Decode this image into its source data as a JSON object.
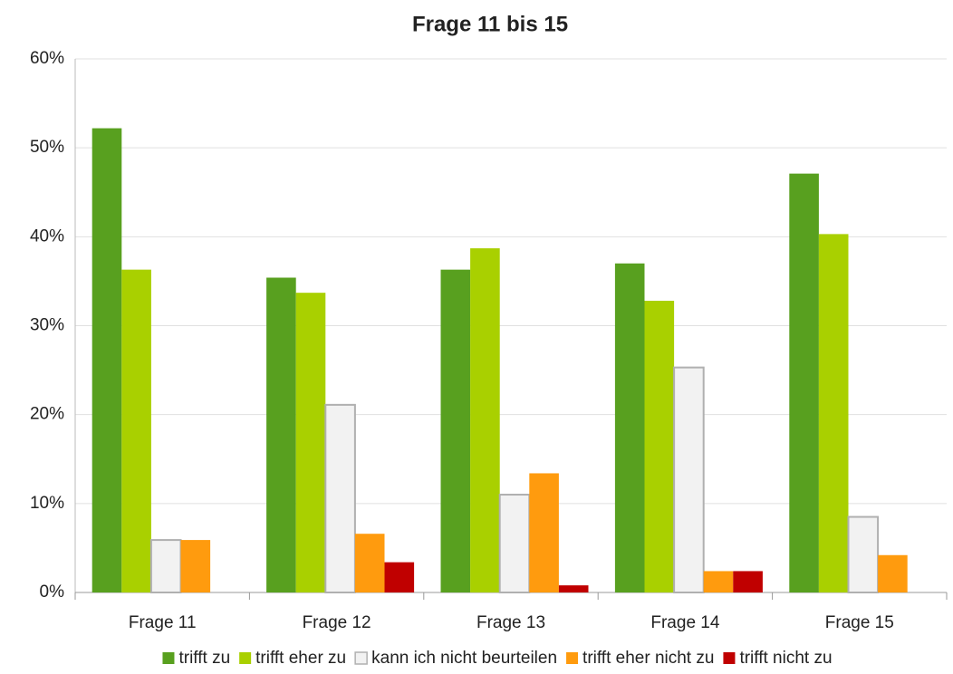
{
  "chart_data": {
    "type": "bar",
    "title": "Frage 11 bis 15",
    "categories": [
      "Frage 11",
      "Frage 12",
      "Frage 13",
      "Frage 14",
      "Frage 15"
    ],
    "series": [
      {
        "name": "trifft zu",
        "color": "#58a01f",
        "values": [
          52.2,
          35.4,
          36.3,
          37.0,
          47.1
        ]
      },
      {
        "name": "trifft eher zu",
        "color": "#a9d000",
        "values": [
          36.3,
          33.7,
          38.7,
          32.8,
          40.3
        ]
      },
      {
        "name": "kann ich nicht beurteilen",
        "color": "#f2f2f2",
        "values": [
          5.9,
          21.1,
          11.0,
          25.3,
          8.5
        ]
      },
      {
        "name": "trifft eher nicht zu",
        "color": "#ff9b0e",
        "values": [
          5.9,
          6.6,
          13.4,
          2.4,
          4.2
        ]
      },
      {
        "name": "trifft nicht zu",
        "color": "#c00000",
        "values": [
          0,
          3.4,
          0.8,
          2.4,
          0
        ]
      }
    ],
    "ylim": [
      0,
      60
    ],
    "yticks": [
      {
        "value": 0,
        "label": "0%"
      },
      {
        "value": 10,
        "label": "10%"
      },
      {
        "value": 20,
        "label": "20%"
      },
      {
        "value": 30,
        "label": "30%"
      },
      {
        "value": 40,
        "label": "40%"
      },
      {
        "value": 50,
        "label": "50%"
      },
      {
        "value": 60,
        "label": "60%"
      }
    ],
    "grid": true,
    "legend": "bottom"
  }
}
